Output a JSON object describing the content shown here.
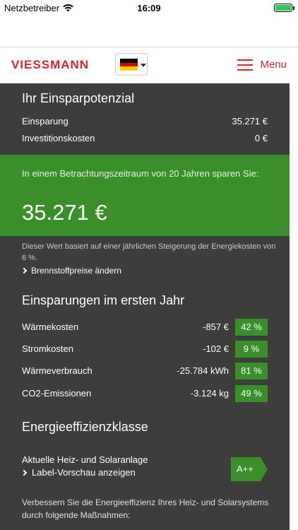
{
  "status": {
    "carrier": "Netzbetreiber",
    "time": "16:09"
  },
  "header": {
    "logo": "VIESSMANN",
    "menu_label": "Menu"
  },
  "colors": {
    "accent": "#d8232a",
    "green": "#3a8f2a",
    "panel": "#3d3d3c"
  },
  "potential": {
    "title": "Ihr Einsparpotenzial",
    "rows": [
      {
        "label": "Einsparung",
        "value": "35.271 €"
      },
      {
        "label": "Investitionskosten",
        "value": "0 €"
      }
    ]
  },
  "highlight": {
    "text": "In einem Betrachtungszeitraum von 20 Jahren sparen Sie:",
    "amount": "35.271 €"
  },
  "note": "Dieser Wert basiert auf einer jährlichen Steigerung der Energiekosten von 6 %.",
  "fuel_link": "Brennstoffpreise ändern",
  "first_year": {
    "title": "Einsparungen im ersten Jahr",
    "rows": [
      {
        "label": "Wärmekosten",
        "value": "-857 €",
        "percent": "42 %"
      },
      {
        "label": "Stromkosten",
        "value": "-102 €",
        "percent": "9 %"
      },
      {
        "label": "Wärmeverbrauch",
        "value": "-25.784 kWh",
        "percent": "81 %"
      },
      {
        "label": "CO2-Emissionen",
        "value": "-3.124 kg",
        "percent": "49 %"
      }
    ]
  },
  "efficiency": {
    "title": "Energieeffizienzklasse",
    "label": "Aktuelle Heiz- und Solaranlage",
    "link": "Label-Vorschau anzeigen",
    "class": "A++",
    "bottom_text": "Verbessern Sie die Energieeffizienz Ihres Heiz- und Solarsystems durch folgende Maßnahmen:"
  }
}
